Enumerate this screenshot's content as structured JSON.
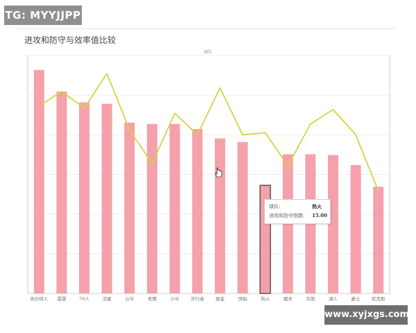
{
  "header": {
    "banner_text": "TG: MYYJJPP"
  },
  "footer": {
    "watermark_text": "www.xyjxgs.com"
  },
  "chart_data": {
    "type": "bar",
    "title": "进攻和防守与效率值比较",
    "top_label": "球队",
    "categories": [
      "凯尔特人",
      "雷霆",
      "76人",
      "活塞",
      "公牛",
      "老鹰",
      "小牛",
      "步行者",
      "掘金",
      "快船",
      "热火",
      "魔术",
      "灰熊",
      "湖人",
      "爵士",
      "尼克斯"
    ],
    "series": [
      {
        "kind": "bar",
        "values": [
          31.0,
          28.0,
          26.5,
          26.3,
          23.7,
          23.5,
          23.5,
          22.8,
          21.5,
          21.0,
          15.0,
          19.3,
          19.3,
          19.2,
          17.8,
          14.8
        ]
      },
      {
        "kind": "line",
        "values": [
          26.0,
          28.0,
          25.7,
          30.5,
          22.7,
          18.0,
          25.0,
          22.0,
          28.5,
          22.0,
          22.3,
          17.7,
          23.5,
          25.5,
          22.0,
          14.2
        ]
      }
    ],
    "ylim": [
      0,
      33
    ],
    "highlight_index": 10,
    "tooltip": {
      "label_1": "球队:",
      "value_1": "热火",
      "label_2": "进攻和防守指数:",
      "value_2": "15.00"
    },
    "colors": {
      "bar": "#f4a1ab",
      "bar_highlight_stroke": "#333333",
      "line": "#d6d33e",
      "grid": "#eeeeee",
      "axis": "#cccccc",
      "tick_text": "#777777"
    },
    "grid": true
  }
}
